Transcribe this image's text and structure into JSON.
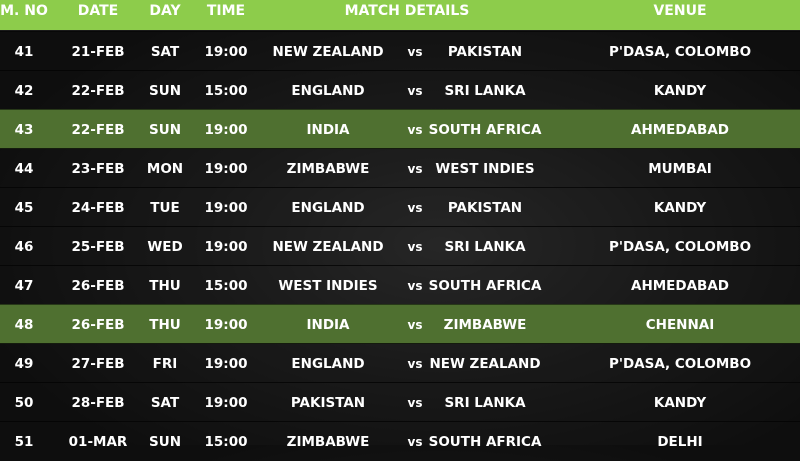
{
  "header": {
    "mno": "M. NO",
    "date": "DATE",
    "day": "DAY",
    "time": "TIME",
    "match": "MATCH DETAILS",
    "venue": "VENUE"
  },
  "colors": {
    "header": "#8dcc4b",
    "highlight": "#4f7030",
    "row": "#141414"
  },
  "rows": [
    {
      "no": "41",
      "date": "21-FEB",
      "day": "SAT",
      "time": "19:00",
      "team1": "NEW ZEALAND",
      "vs": "vs",
      "team2": "PAKISTAN",
      "venue": "P'DASA, COLOMBO",
      "highlight": false
    },
    {
      "no": "42",
      "date": "22-FEB",
      "day": "SUN",
      "time": "15:00",
      "team1": "ENGLAND",
      "vs": "vs",
      "team2": "SRI LANKA",
      "venue": "KANDY",
      "highlight": false
    },
    {
      "no": "43",
      "date": "22-FEB",
      "day": "SUN",
      "time": "19:00",
      "team1": "INDIA",
      "vs": "vs",
      "team2": "SOUTH AFRICA",
      "venue": "AHMEDABAD",
      "highlight": true
    },
    {
      "no": "44",
      "date": "23-FEB",
      "day": "MON",
      "time": "19:00",
      "team1": "ZIMBABWE",
      "vs": "vs",
      "team2": "WEST INDIES",
      "venue": "MUMBAI",
      "highlight": false
    },
    {
      "no": "45",
      "date": "24-FEB",
      "day": "TUE",
      "time": "19:00",
      "team1": "ENGLAND",
      "vs": "vs",
      "team2": "PAKISTAN",
      "venue": "KANDY",
      "highlight": false
    },
    {
      "no": "46",
      "date": "25-FEB",
      "day": "WED",
      "time": "19:00",
      "team1": "NEW ZEALAND",
      "vs": "vs",
      "team2": "SRI LANKA",
      "venue": "P'DASA, COLOMBO",
      "highlight": false
    },
    {
      "no": "47",
      "date": "26-FEB",
      "day": "THU",
      "time": "15:00",
      "team1": "WEST INDIES",
      "vs": "vs",
      "team2": "SOUTH AFRICA",
      "venue": "AHMEDABAD",
      "highlight": false
    },
    {
      "no": "48",
      "date": "26-FEB",
      "day": "THU",
      "time": "19:00",
      "team1": "INDIA",
      "vs": "vs",
      "team2": "ZIMBABWE",
      "venue": "CHENNAI",
      "highlight": true
    },
    {
      "no": "49",
      "date": "27-FEB",
      "day": "FRI",
      "time": "19:00",
      "team1": "ENGLAND",
      "vs": "vs",
      "team2": "NEW ZEALAND",
      "venue": "P'DASA, COLOMBO",
      "highlight": false
    },
    {
      "no": "50",
      "date": "28-FEB",
      "day": "SAT",
      "time": "19:00",
      "team1": "PAKISTAN",
      "vs": "vs",
      "team2": "SRI LANKA",
      "venue": "KANDY",
      "highlight": false
    },
    {
      "no": "51",
      "date": "01-MAR",
      "day": "SUN",
      "time": "15:00",
      "team1": "ZIMBABWE",
      "vs": "vs",
      "team2": "SOUTH AFRICA",
      "venue": "DELHI",
      "highlight": false
    }
  ]
}
